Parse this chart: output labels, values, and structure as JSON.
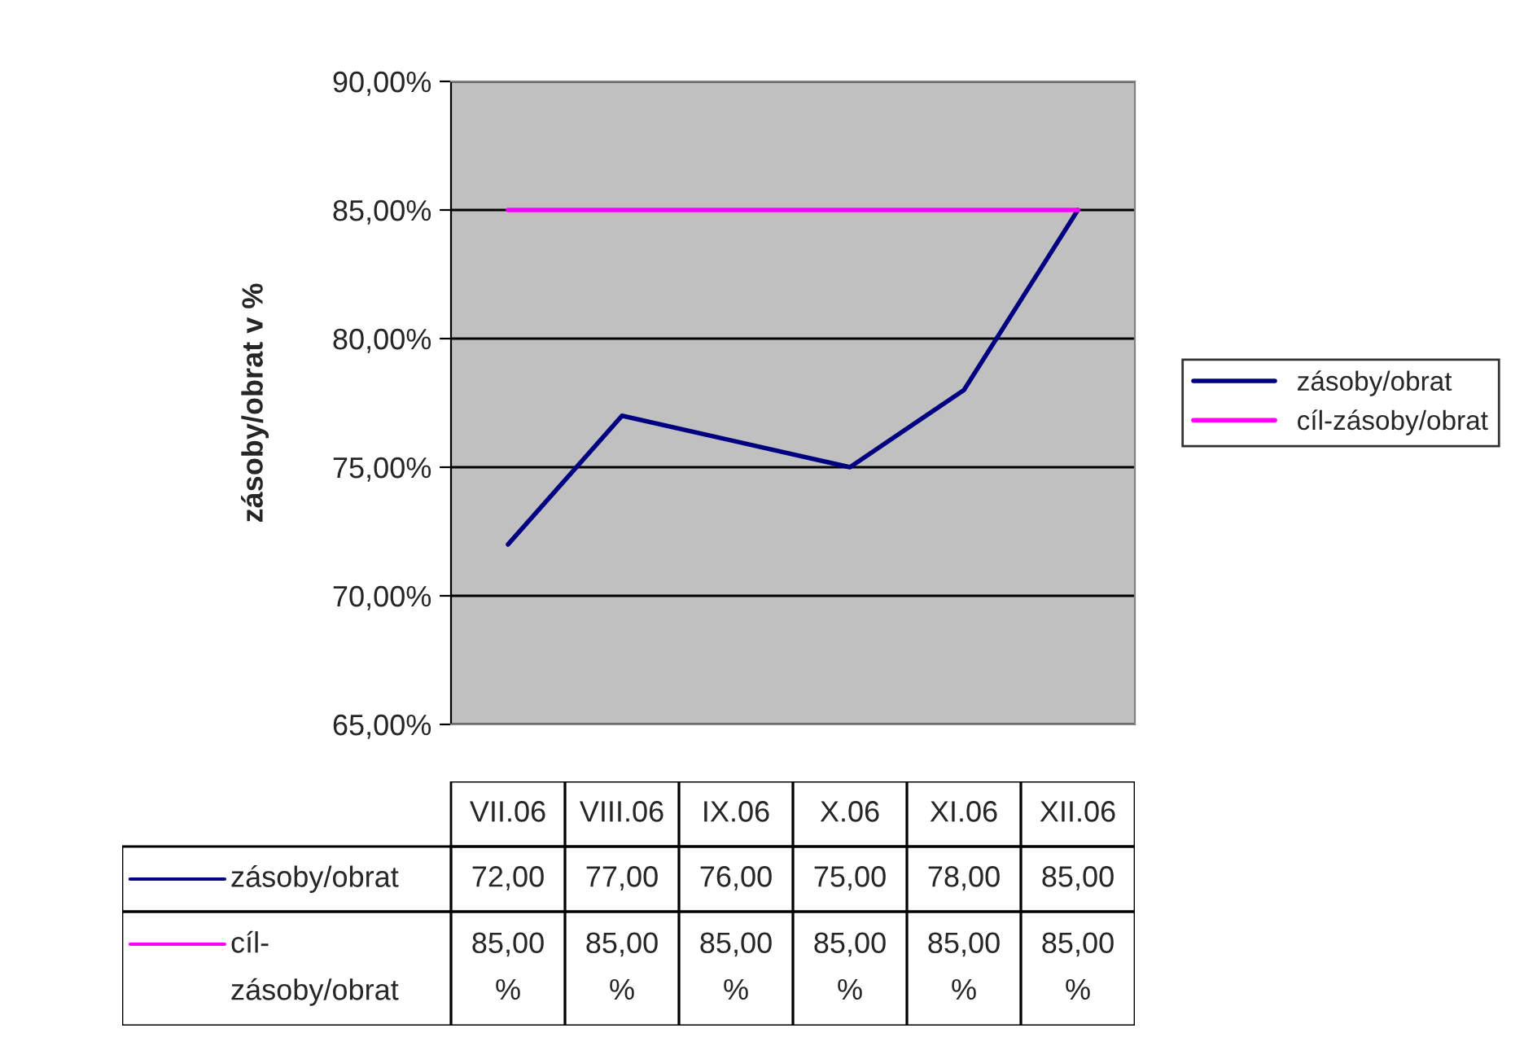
{
  "chart_data": {
    "type": "line",
    "ylabel": "zásoby/obrat v %",
    "categories": [
      "VII.06",
      "VIII.06",
      "IX.06",
      "X.06",
      "XI.06",
      "XII.06"
    ],
    "series": [
      {
        "name": "zásoby/obrat",
        "color": "#000080",
        "values": [
          72,
          77,
          76,
          75,
          78,
          85
        ],
        "value_labels": [
          "72,00",
          "77,00",
          "76,00",
          "75,00",
          "78,00",
          "85,00"
        ]
      },
      {
        "name": "cíl-zásoby/obrat",
        "color": "#ff00ff",
        "values": [
          85,
          85,
          85,
          85,
          85,
          85
        ],
        "value_labels": [
          "85,00 %",
          "85,00 %",
          "85,00 %",
          "85,00 %",
          "85,00 %",
          "85,00 %"
        ]
      }
    ],
    "ylim": [
      65,
      90
    ],
    "yticks": [
      {
        "value": 65,
        "label": "65,00%"
      },
      {
        "value": 70,
        "label": "70,00%"
      },
      {
        "value": 75,
        "label": "75,00%"
      },
      {
        "value": 80,
        "label": "80,00%"
      },
      {
        "value": 85,
        "label": "85,00%"
      },
      {
        "value": 90,
        "label": "90,00%"
      }
    ],
    "grid": "y",
    "legend": "right",
    "line_style": "solid",
    "marker": "none"
  }
}
